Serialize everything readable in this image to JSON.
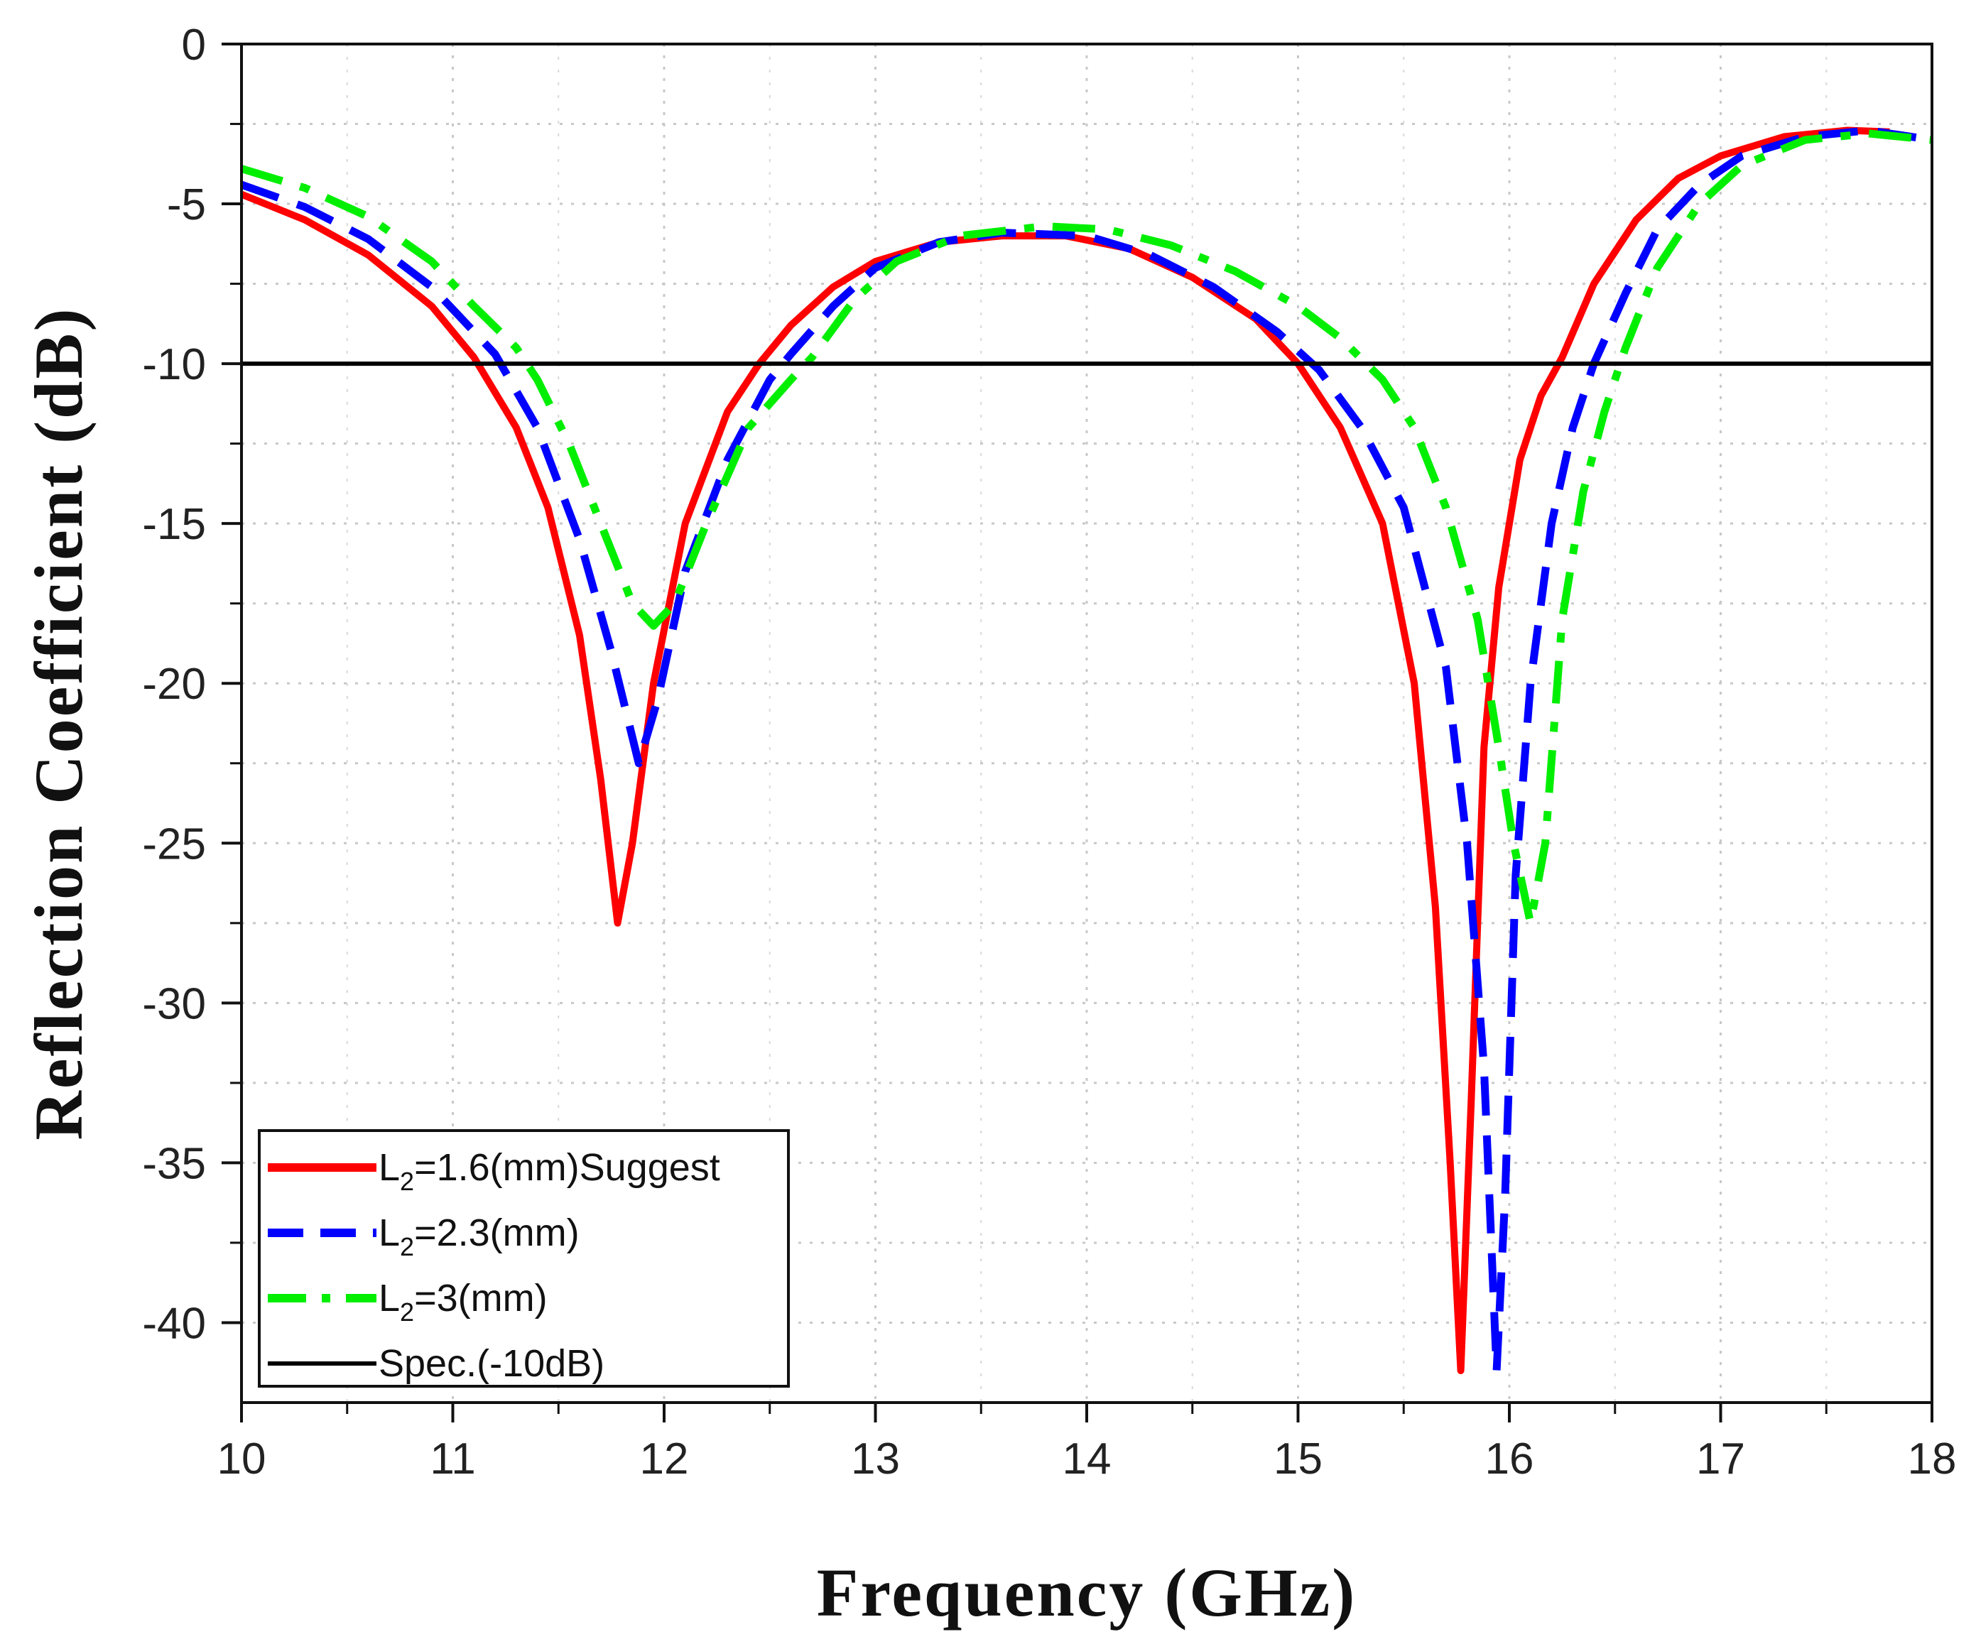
{
  "chart_data": {
    "type": "line",
    "title": "",
    "xlabel": "Frequency (GHz)",
    "ylabel": "Reflection Coefficient (dB)",
    "xlim": [
      10,
      18
    ],
    "ylim": [
      -42.5,
      0
    ],
    "xticks": [
      10,
      11,
      12,
      13,
      14,
      15,
      16,
      17,
      18
    ],
    "xtick_labels": [
      "10",
      "11",
      "12",
      "13",
      "14",
      "15",
      "16",
      "17",
      "18"
    ],
    "yticks": [
      0,
      -5,
      -10,
      -15,
      -20,
      -25,
      -30,
      -35,
      -40
    ],
    "ytick_labels": [
      "0",
      "-5",
      "-10",
      "-15",
      "-20",
      "-25",
      "-30",
      "-35",
      "-40"
    ],
    "grid": true,
    "legend": {
      "position": "bottom-left"
    },
    "series": [
      {
        "name": "L",
        "name_sub": "2",
        "name_rest": "=1.6(mm)Suggest",
        "color": "#ff0000",
        "style": "solid",
        "points": [
          [
            10.0,
            -4.7
          ],
          [
            10.3,
            -5.5
          ],
          [
            10.6,
            -6.6
          ],
          [
            10.9,
            -8.2
          ],
          [
            11.1,
            -9.8
          ],
          [
            11.3,
            -12.0
          ],
          [
            11.45,
            -14.5
          ],
          [
            11.6,
            -18.5
          ],
          [
            11.7,
            -23.0
          ],
          [
            11.78,
            -27.5
          ],
          [
            11.85,
            -25.0
          ],
          [
            11.95,
            -20.0
          ],
          [
            12.1,
            -15.0
          ],
          [
            12.3,
            -11.5
          ],
          [
            12.45,
            -10.0
          ],
          [
            12.6,
            -8.8
          ],
          [
            12.8,
            -7.6
          ],
          [
            13.0,
            -6.8
          ],
          [
            13.3,
            -6.2
          ],
          [
            13.6,
            -6.0
          ],
          [
            13.9,
            -6.0
          ],
          [
            14.2,
            -6.4
          ],
          [
            14.5,
            -7.3
          ],
          [
            14.8,
            -8.6
          ],
          [
            15.0,
            -10.0
          ],
          [
            15.2,
            -12.0
          ],
          [
            15.4,
            -15.0
          ],
          [
            15.55,
            -20.0
          ],
          [
            15.65,
            -27.0
          ],
          [
            15.72,
            -35.0
          ],
          [
            15.77,
            -41.5
          ],
          [
            15.82,
            -33.0
          ],
          [
            15.88,
            -22.0
          ],
          [
            15.95,
            -17.0
          ],
          [
            16.05,
            -13.0
          ],
          [
            16.15,
            -11.0
          ],
          [
            16.25,
            -9.8
          ],
          [
            16.4,
            -7.5
          ],
          [
            16.6,
            -5.5
          ],
          [
            16.8,
            -4.2
          ],
          [
            17.0,
            -3.5
          ],
          [
            17.3,
            -2.9
          ],
          [
            17.6,
            -2.7
          ],
          [
            17.8,
            -2.75
          ]
        ]
      },
      {
        "name": "L",
        "name_sub": "2",
        "name_rest": "=2.3(mm)",
        "color": "#0000ff",
        "style": "dashed",
        "points": [
          [
            10.0,
            -4.4
          ],
          [
            10.3,
            -5.1
          ],
          [
            10.6,
            -6.1
          ],
          [
            10.9,
            -7.6
          ],
          [
            11.2,
            -9.7
          ],
          [
            11.4,
            -12.0
          ],
          [
            11.6,
            -15.5
          ],
          [
            11.75,
            -19.0
          ],
          [
            11.88,
            -22.5
          ],
          [
            11.97,
            -20.5
          ],
          [
            12.1,
            -16.5
          ],
          [
            12.3,
            -13.0
          ],
          [
            12.5,
            -10.5
          ],
          [
            12.6,
            -9.7
          ],
          [
            12.8,
            -8.2
          ],
          [
            13.0,
            -7.0
          ],
          [
            13.3,
            -6.2
          ],
          [
            13.6,
            -5.9
          ],
          [
            14.0,
            -6.0
          ],
          [
            14.3,
            -6.6
          ],
          [
            14.6,
            -7.6
          ],
          [
            14.9,
            -9.0
          ],
          [
            15.1,
            -10.2
          ],
          [
            15.3,
            -12.0
          ],
          [
            15.5,
            -14.5
          ],
          [
            15.7,
            -19.5
          ],
          [
            15.8,
            -25.0
          ],
          [
            15.88,
            -32.0
          ],
          [
            15.94,
            -41.5
          ],
          [
            15.98,
            -36.0
          ],
          [
            16.03,
            -26.0
          ],
          [
            16.1,
            -20.0
          ],
          [
            16.2,
            -15.0
          ],
          [
            16.3,
            -12.0
          ],
          [
            16.4,
            -10.0
          ],
          [
            16.55,
            -7.8
          ],
          [
            16.7,
            -5.8
          ],
          [
            16.9,
            -4.4
          ],
          [
            17.1,
            -3.5
          ],
          [
            17.4,
            -2.9
          ],
          [
            17.7,
            -2.7
          ],
          [
            18.0,
            -3.0
          ]
        ]
      },
      {
        "name": "L",
        "name_sub": "2",
        "name_rest": "=3(mm)",
        "color": "#00ee00",
        "style": "dashdot",
        "points": [
          [
            10.0,
            -3.9
          ],
          [
            10.3,
            -4.5
          ],
          [
            10.6,
            -5.4
          ],
          [
            10.9,
            -6.8
          ],
          [
            11.1,
            -8.2
          ],
          [
            11.3,
            -9.5
          ],
          [
            11.4,
            -10.5
          ],
          [
            11.55,
            -12.5
          ],
          [
            11.7,
            -15.0
          ],
          [
            11.85,
            -17.5
          ],
          [
            11.95,
            -18.2
          ],
          [
            12.05,
            -17.5
          ],
          [
            12.2,
            -15.0
          ],
          [
            12.4,
            -12.0
          ],
          [
            12.6,
            -10.5
          ],
          [
            12.7,
            -9.8
          ],
          [
            12.9,
            -8.0
          ],
          [
            13.1,
            -6.8
          ],
          [
            13.4,
            -6.0
          ],
          [
            13.8,
            -5.7
          ],
          [
            14.1,
            -5.8
          ],
          [
            14.4,
            -6.3
          ],
          [
            14.7,
            -7.1
          ],
          [
            15.0,
            -8.2
          ],
          [
            15.2,
            -9.2
          ],
          [
            15.4,
            -10.5
          ],
          [
            15.55,
            -12.0
          ],
          [
            15.7,
            -14.5
          ],
          [
            15.85,
            -18.0
          ],
          [
            15.95,
            -22.0
          ],
          [
            16.02,
            -25.0
          ],
          [
            16.1,
            -27.5
          ],
          [
            16.17,
            -25.0
          ],
          [
            16.25,
            -18.0
          ],
          [
            16.35,
            -14.0
          ],
          [
            16.45,
            -11.5
          ],
          [
            16.55,
            -9.5
          ],
          [
            16.7,
            -7.0
          ],
          [
            16.9,
            -5.0
          ],
          [
            17.1,
            -3.8
          ],
          [
            17.4,
            -3.0
          ],
          [
            17.7,
            -2.8
          ],
          [
            18.0,
            -3.0
          ]
        ]
      },
      {
        "name": "Spec.(-10dB)",
        "color": "#000000",
        "style": "solid",
        "points": [
          [
            10,
            -10
          ],
          [
            18,
            -10
          ]
        ]
      }
    ]
  }
}
